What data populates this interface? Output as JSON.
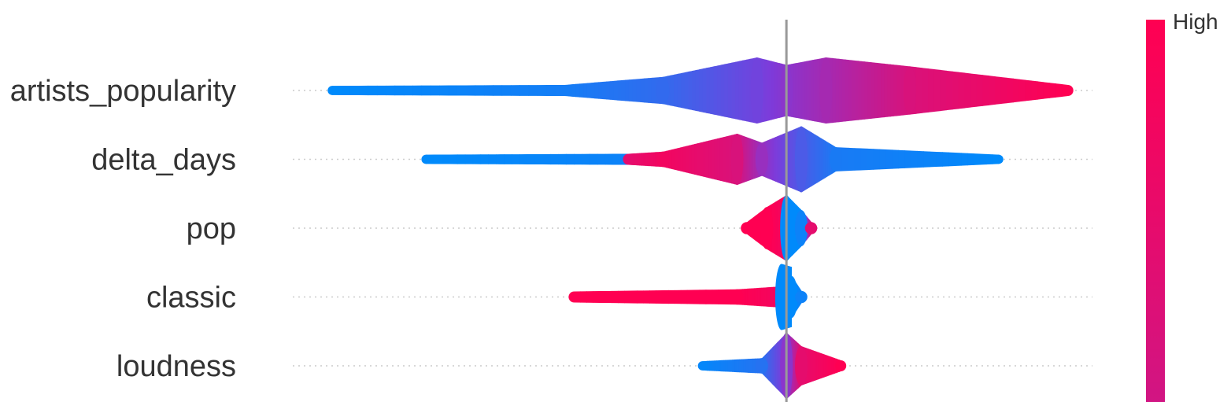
{
  "chart_data": {
    "type": "scatter",
    "subtype": "beeswarm",
    "title": "",
    "xlabel": "",
    "ylabel": "",
    "zero_line": 0,
    "xlim": [
      -1.0,
      0.62
    ],
    "features": [
      {
        "name": "artists_popularity",
        "segments": [
          {
            "x0": -0.92,
            "x1": -0.45,
            "h0": 0.05,
            "h1": 0.08,
            "c0": 0.0,
            "c1": 0.08
          },
          {
            "x0": -0.45,
            "x1": -0.25,
            "h0": 0.08,
            "h1": 0.35,
            "c0": 0.08,
            "c1": 0.2
          },
          {
            "x0": -0.25,
            "x1": -0.06,
            "h0": 0.35,
            "h1": 1.0,
            "c0": 0.2,
            "c1": 0.45
          },
          {
            "x0": -0.06,
            "x1": 0.0,
            "h0": 1.0,
            "h1": 0.75,
            "c0": 0.45,
            "c1": 0.55
          },
          {
            "x0": 0.0,
            "x1": 0.08,
            "h0": 0.75,
            "h1": 1.0,
            "c0": 0.55,
            "c1": 0.65
          },
          {
            "x0": 0.08,
            "x1": 0.25,
            "h0": 1.0,
            "h1": 0.7,
            "c0": 0.65,
            "c1": 0.85
          },
          {
            "x0": 0.25,
            "x1": 0.57,
            "h0": 0.7,
            "h1": 0.08,
            "c0": 0.85,
            "c1": 1.0
          }
        ]
      },
      {
        "name": "delta_days",
        "segments": [
          {
            "x0": -0.73,
            "x1": -0.32,
            "h0": 0.05,
            "h1": 0.08,
            "c0": 0.0,
            "c1": 0.05
          },
          {
            "x0": -0.32,
            "x1": -0.25,
            "h0": 0.08,
            "h1": 0.15,
            "c0": 0.9,
            "c1": 0.95
          },
          {
            "x0": -0.25,
            "x1": -0.1,
            "h0": 0.15,
            "h1": 0.75,
            "c0": 0.95,
            "c1": 0.85
          },
          {
            "x0": -0.1,
            "x1": -0.05,
            "h0": 0.75,
            "h1": 0.45,
            "c0": 0.85,
            "c1": 0.6
          },
          {
            "x0": -0.05,
            "x1": 0.03,
            "h0": 0.45,
            "h1": 1.0,
            "c0": 0.6,
            "c1": 0.3
          },
          {
            "x0": 0.03,
            "x1": 0.1,
            "h0": 1.0,
            "h1": 0.3,
            "c0": 0.3,
            "c1": 0.1
          },
          {
            "x0": 0.1,
            "x1": 0.43,
            "h0": 0.3,
            "h1": 0.05,
            "c0": 0.1,
            "c1": 0.0
          }
        ]
      },
      {
        "name": "pop",
        "segments": [
          {
            "x0": -0.08,
            "x1": -0.04,
            "h0": 0.1,
            "h1": 0.6,
            "c0": 1.0,
            "c1": 1.0
          },
          {
            "x0": -0.04,
            "x1": 0.0,
            "h0": 0.6,
            "h1": 1.0,
            "c0": 1.0,
            "c1": 0.95
          },
          {
            "x0": 0.0,
            "x1": 0.03,
            "h0": 1.0,
            "h1": 0.5,
            "c0": 0.0,
            "c1": 0.0
          },
          {
            "x0": 0.03,
            "x1": 0.05,
            "h0": 0.5,
            "h1": 0.1,
            "c0": 0.05,
            "c1": 0.9
          }
        ]
      },
      {
        "name": "classic",
        "segments": [
          {
            "x0": -0.43,
            "x1": -0.1,
            "h0": 0.08,
            "h1": 0.15,
            "c0": 1.0,
            "c1": 1.0
          },
          {
            "x0": -0.1,
            "x1": -0.01,
            "h0": 0.15,
            "h1": 0.25,
            "c0": 1.0,
            "c1": 0.95
          },
          {
            "x0": -0.01,
            "x1": 0.01,
            "h0": 1.0,
            "h1": 0.9,
            "c0": 0.0,
            "c1": 0.0
          },
          {
            "x0": 0.01,
            "x1": 0.03,
            "h0": 0.6,
            "h1": 0.1,
            "c0": 0.0,
            "c1": 0.05
          }
        ]
      },
      {
        "name": "loudness",
        "segments": [
          {
            "x0": -0.17,
            "x1": -0.05,
            "h0": 0.05,
            "h1": 0.15,
            "c0": 0.02,
            "c1": 0.15
          },
          {
            "x0": -0.05,
            "x1": 0.0,
            "h0": 0.15,
            "h1": 1.0,
            "c0": 0.15,
            "c1": 0.55
          },
          {
            "x0": 0.0,
            "x1": 0.03,
            "h0": 1.0,
            "h1": 0.55,
            "c0": 0.55,
            "c1": 0.9
          },
          {
            "x0": 0.03,
            "x1": 0.11,
            "h0": 0.55,
            "h1": 0.08,
            "c0": 0.9,
            "c1": 1.0
          }
        ]
      }
    ],
    "colorbar": {
      "label_high": "High",
      "color_low": "#008afb",
      "color_high": "#ff0052"
    }
  }
}
